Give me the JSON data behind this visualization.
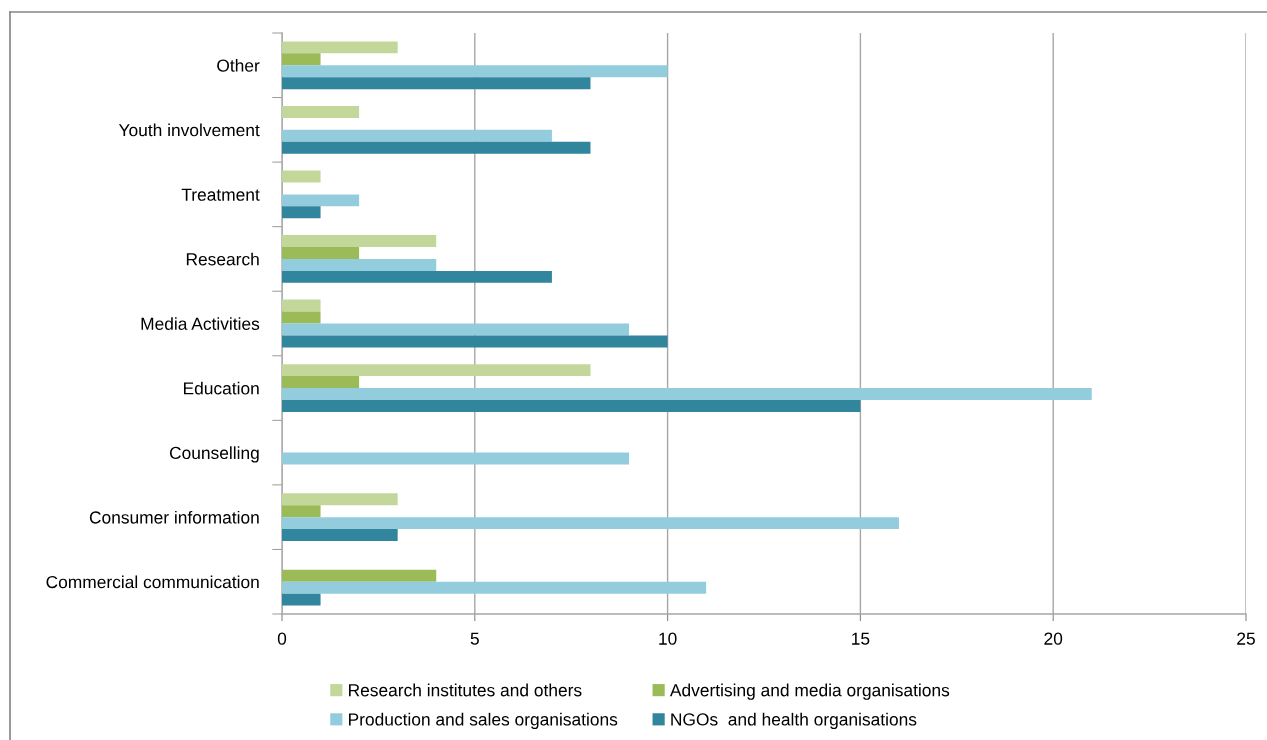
{
  "chart_data": {
    "type": "bar",
    "orientation": "horizontal",
    "categories": [
      "Other",
      "Youth involvement",
      "Treatment",
      "Research",
      "Media Activities",
      "Education",
      "Counselling",
      "Consumer information",
      "Commercial communication"
    ],
    "series": [
      {
        "name": "Research institutes and others",
        "color": "#c4d79b",
        "values": [
          3,
          2,
          1,
          4,
          1,
          8,
          null,
          3,
          null
        ]
      },
      {
        "name": "Advertising and media organisations",
        "color": "#9bbb59",
        "values": [
          1,
          null,
          null,
          2,
          1,
          2,
          null,
          1,
          4
        ]
      },
      {
        "name": "Production and sales organisations",
        "color": "#93cddd",
        "values": [
          10,
          7,
          2,
          4,
          9,
          21,
          9,
          16,
          11
        ]
      },
      {
        "name": "NGOs  and health organisations",
        "color": "#31859c",
        "values": [
          8,
          8,
          1,
          7,
          10,
          15,
          null,
          3,
          1
        ]
      }
    ],
    "xlim": [
      0,
      25
    ],
    "xticks": [
      0,
      5,
      10,
      15,
      20,
      25
    ],
    "grid": "x",
    "legend": "bottom"
  }
}
